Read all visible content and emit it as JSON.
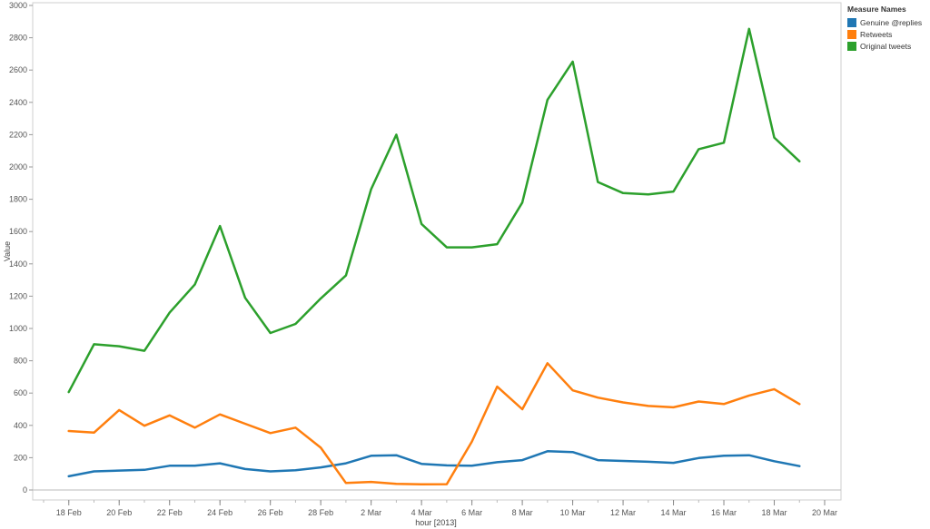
{
  "chart_data": {
    "type": "line",
    "xlabel": "hour [2013]",
    "ylabel": "Value",
    "ylim": [
      0,
      3000
    ],
    "yticks": [
      0,
      200,
      400,
      600,
      800,
      1000,
      1200,
      1400,
      1600,
      1800,
      2000,
      2200,
      2400,
      2600,
      2800,
      3000
    ],
    "xrange": [
      "2013-02-17",
      "2013-03-20"
    ],
    "xticks": [
      {
        "date": "2013-02-18",
        "label": "18 Feb"
      },
      {
        "date": "2013-02-20",
        "label": "20 Feb"
      },
      {
        "date": "2013-02-22",
        "label": "22 Feb"
      },
      {
        "date": "2013-02-24",
        "label": "24 Feb"
      },
      {
        "date": "2013-02-26",
        "label": "26 Feb"
      },
      {
        "date": "2013-02-28",
        "label": "28 Feb"
      },
      {
        "date": "2013-03-02",
        "label": "2 Mar"
      },
      {
        "date": "2013-03-04",
        "label": "4 Mar"
      },
      {
        "date": "2013-03-06",
        "label": "6 Mar"
      },
      {
        "date": "2013-03-08",
        "label": "8 Mar"
      },
      {
        "date": "2013-03-10",
        "label": "10 Mar"
      },
      {
        "date": "2013-03-12",
        "label": "12 Mar"
      },
      {
        "date": "2013-03-14",
        "label": "14 Mar"
      },
      {
        "date": "2013-03-16",
        "label": "16 Mar"
      },
      {
        "date": "2013-03-18",
        "label": "18 Mar"
      },
      {
        "date": "2013-03-20",
        "label": "20 Mar"
      }
    ],
    "x": [
      "2013-02-18",
      "2013-02-19",
      "2013-02-20",
      "2013-02-21",
      "2013-02-22",
      "2013-02-23",
      "2013-02-24",
      "2013-02-25",
      "2013-02-26",
      "2013-02-27",
      "2013-02-28",
      "2013-03-01",
      "2013-03-02",
      "2013-03-03",
      "2013-03-04",
      "2013-03-05",
      "2013-03-06",
      "2013-03-07",
      "2013-03-08",
      "2013-03-09",
      "2013-03-10",
      "2013-03-11",
      "2013-03-12",
      "2013-03-13",
      "2013-03-14",
      "2013-03-15",
      "2013-03-16",
      "2013-03-17",
      "2013-03-18",
      "2013-03-19"
    ],
    "series": [
      {
        "name": "Genuine @replies",
        "color": "#1f77b4",
        "values": [
          85,
          115,
          120,
          125,
          150,
          150,
          165,
          130,
          115,
          122,
          140,
          165,
          212,
          215,
          162,
          152,
          150,
          172,
          185,
          240,
          235,
          185,
          180,
          175,
          168,
          198,
          212,
          215,
          178,
          148
        ]
      },
      {
        "name": "Retweets",
        "color": "#ff7f0e",
        "values": [
          365,
          355,
          495,
          398,
          462,
          386,
          468,
          410,
          352,
          386,
          262,
          43,
          50,
          38,
          35,
          36,
          300,
          640,
          500,
          785,
          617,
          572,
          542,
          520,
          512,
          548,
          532,
          585,
          624,
          532
        ]
      },
      {
        "name": "Original tweets",
        "color": "#2ca02c",
        "values": [
          606,
          902,
          890,
          862,
          1098,
          1272,
          1634,
          1190,
          972,
          1028,
          1186,
          1328,
          1862,
          2200,
          1647,
          1502,
          1502,
          1522,
          1780,
          2415,
          2652,
          1907,
          1838,
          1830,
          1848,
          2110,
          2150,
          2855,
          2182,
          2035
        ]
      }
    ],
    "legend": {
      "title": "Measure Names",
      "position": "top-right"
    },
    "grid": false
  }
}
